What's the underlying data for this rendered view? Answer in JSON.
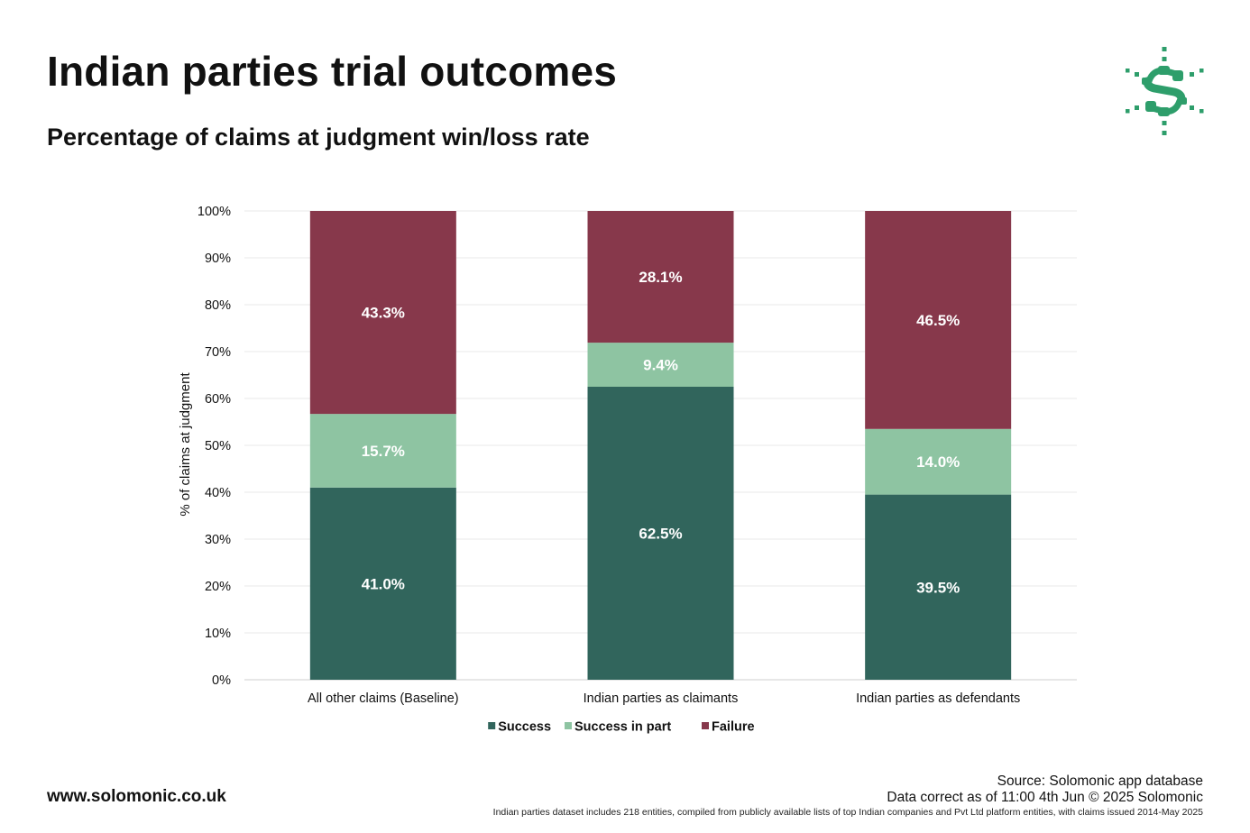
{
  "header": {
    "title": "Indian parties trial outcomes",
    "subtitle": "Percentage of claims at judgment win/loss rate"
  },
  "logo": {
    "icon": "solomonic-logo-icon",
    "color": "#2e9e6b"
  },
  "footer": {
    "website": "www.solomonic.co.uk",
    "source": "Source: Solomonic app database",
    "data_correct": "Data correct as of 11:00 4th Jun © 2025 Solomonic",
    "note": "Indian parties dataset includes 218 entities, compiled from publicly available lists of top Indian companies and Pvt Ltd platform entities, with claims issued 2014-May 2025"
  },
  "chart_data": {
    "type": "bar",
    "stacked": true,
    "title": "Indian parties trial outcomes",
    "subtitle": "Percentage of claims at judgment win/loss rate",
    "xlabel": "",
    "ylabel": "% of claims at judgment",
    "ylim": [
      0,
      100
    ],
    "yticks": [
      0,
      10,
      20,
      30,
      40,
      50,
      60,
      70,
      80,
      90,
      100
    ],
    "ytick_suffix": "%",
    "grid": true,
    "legend_position": "bottom-center",
    "categories": [
      "All other claims (Baseline)",
      "Indian parties as claimants",
      "Indian parties as defendants"
    ],
    "series": [
      {
        "name": "Success",
        "color": "#31655c",
        "values": [
          41.0,
          62.5,
          39.5
        ]
      },
      {
        "name": "Success in part",
        "color": "#8ec4a2",
        "values": [
          15.7,
          9.4,
          14.0
        ]
      },
      {
        "name": "Failure",
        "color": "#87384b",
        "values": [
          43.3,
          28.1,
          46.5
        ]
      }
    ]
  }
}
